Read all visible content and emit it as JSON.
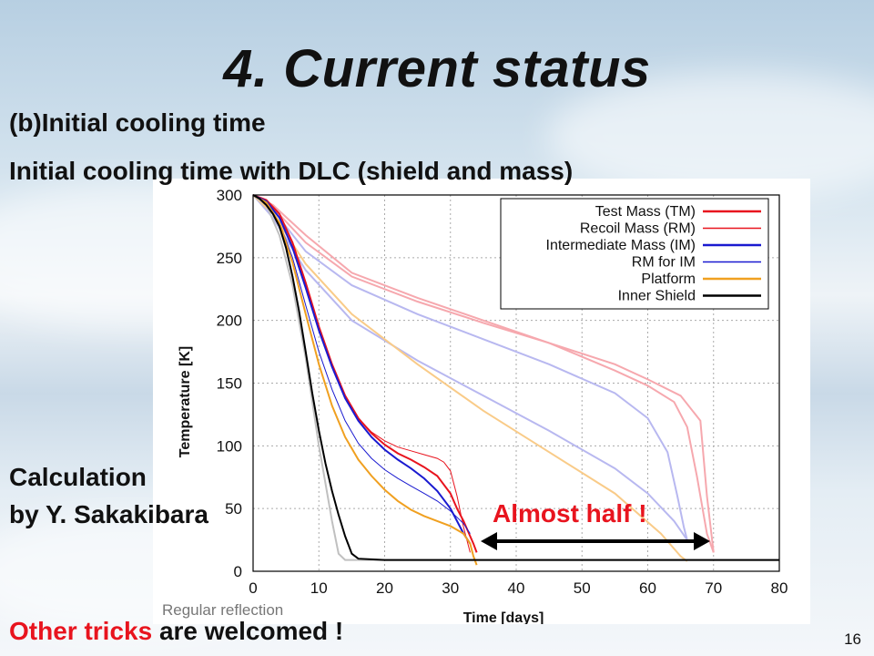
{
  "slide": {
    "title": "4. Current status",
    "subtitle": "(b)Initial cooling time",
    "chart_caption": "Initial cooling time with DLC (shield and mass)",
    "credit_line1": "Calculation",
    "credit_line2": "by Y. Sakakibara",
    "callout": "Almost half !",
    "footer_highlight": "Other tricks",
    "footer_rest": " are welcomed !",
    "page_number": "16",
    "watermark": "Regular reflection"
  },
  "colors": {
    "accent_red": "#e8141e",
    "arrow": "#000000"
  },
  "chart_data": {
    "type": "line",
    "xlabel": "Time [days]",
    "ylabel": "Temperature [K]",
    "xlim": [
      0,
      80
    ],
    "ylim": [
      0,
      300
    ],
    "xticks": [
      0,
      10,
      20,
      30,
      40,
      50,
      60,
      70,
      80
    ],
    "yticks": [
      0,
      50,
      100,
      150,
      200,
      250,
      300
    ],
    "grid": true,
    "legend_position": "top-right",
    "series": [
      {
        "name": "Test Mass (TM)",
        "color": "#e8141e",
        "width": 2,
        "x": [
          0,
          2,
          4,
          6,
          8,
          10,
          12,
          14,
          16,
          18,
          20,
          22,
          24,
          26,
          28,
          30,
          31,
          32,
          33,
          33.5,
          34
        ],
        "y": [
          300,
          296,
          285,
          262,
          230,
          195,
          165,
          140,
          122,
          110,
          101,
          94,
          89,
          83,
          76,
          62,
          50,
          40,
          28,
          22,
          15
        ]
      },
      {
        "name": "Recoil Mass (RM)",
        "color": "#e8141e",
        "width": 1,
        "x": [
          0,
          2,
          4,
          6,
          8,
          10,
          12,
          14,
          16,
          18,
          20,
          22,
          24,
          26,
          28,
          29,
          30,
          31,
          32,
          33
        ],
        "y": [
          300,
          296,
          285,
          262,
          230,
          195,
          165,
          140,
          122,
          111,
          104,
          99,
          96,
          93,
          90,
          87,
          80,
          60,
          35,
          15
        ]
      },
      {
        "name": "Intermediate Mass (IM)",
        "color": "#1a1ad0",
        "width": 2,
        "x": [
          0,
          2,
          4,
          6,
          8,
          10,
          12,
          14,
          16,
          18,
          20,
          22,
          24,
          26,
          28,
          30,
          31,
          32,
          33
        ],
        "y": [
          300,
          295,
          282,
          258,
          226,
          192,
          163,
          138,
          120,
          107,
          97,
          89,
          82,
          74,
          64,
          50,
          40,
          30,
          22
        ]
      },
      {
        "name": "RM for IM",
        "color": "#1a1ad0",
        "width": 1,
        "x": [
          0,
          2,
          4,
          6,
          8,
          10,
          12,
          14,
          16,
          18,
          20,
          22,
          24,
          26,
          28,
          30,
          32,
          33
        ],
        "y": [
          300,
          294,
          278,
          250,
          212,
          175,
          145,
          120,
          102,
          90,
          81,
          74,
          68,
          62,
          56,
          48,
          38,
          30
        ]
      },
      {
        "name": "Platform",
        "color": "#f0a020",
        "width": 2,
        "x": [
          0,
          2,
          4,
          6,
          8,
          10,
          12,
          14,
          16,
          18,
          20,
          22,
          24,
          26,
          28,
          30,
          32,
          33,
          33.5,
          34
        ],
        "y": [
          300,
          294,
          278,
          246,
          205,
          165,
          132,
          107,
          89,
          76,
          65,
          56,
          49,
          44,
          40,
          36,
          30,
          22,
          12,
          5
        ]
      },
      {
        "name": "Inner Shield",
        "color": "#000000",
        "width": 2,
        "x": [
          0,
          1,
          2,
          3,
          4,
          5,
          6,
          7,
          8,
          9,
          10,
          11,
          12,
          13,
          14,
          15,
          16,
          20,
          40,
          80
        ],
        "y": [
          300,
          297,
          292,
          285,
          275,
          258,
          235,
          207,
          175,
          142,
          112,
          86,
          64,
          45,
          28,
          14,
          10,
          9,
          9,
          9
        ]
      }
    ],
    "faded_series": [
      {
        "color": "#f6a8ae",
        "x": [
          0,
          3,
          8,
          15,
          25,
          35,
          45,
          55,
          60,
          64,
          66,
          67.5,
          69,
          70
        ],
        "y": [
          300,
          292,
          268,
          238,
          218,
          200,
          182,
          160,
          148,
          135,
          115,
          75,
          30,
          15
        ]
      },
      {
        "color": "#f6a8ae",
        "x": [
          0,
          3,
          8,
          15,
          25,
          35,
          45,
          55,
          60,
          65,
          68,
          69,
          70
        ],
        "y": [
          300,
          290,
          262,
          235,
          215,
          198,
          182,
          165,
          153,
          140,
          120,
          60,
          15
        ]
      },
      {
        "color": "#b8b8f0",
        "x": [
          0,
          3,
          8,
          15,
          25,
          35,
          45,
          55,
          60,
          63,
          64.5,
          65.5,
          66
        ],
        "y": [
          300,
          288,
          255,
          228,
          205,
          185,
          165,
          142,
          122,
          95,
          60,
          35,
          25
        ]
      },
      {
        "color": "#b8b8f0",
        "x": [
          0,
          3,
          8,
          15,
          25,
          35,
          45,
          55,
          60,
          64,
          66
        ],
        "y": [
          300,
          282,
          240,
          200,
          168,
          140,
          112,
          82,
          62,
          40,
          25
        ]
      },
      {
        "color": "#f9cb88",
        "x": [
          0,
          3,
          8,
          15,
          25,
          35,
          45,
          55,
          62,
          65,
          66
        ],
        "y": [
          300,
          285,
          245,
          205,
          165,
          128,
          95,
          62,
          30,
          12,
          8
        ]
      },
      {
        "color": "#c0c0c0",
        "x": [
          0,
          2,
          4,
          6,
          8,
          10,
          12,
          13,
          14,
          80
        ],
        "y": [
          300,
          292,
          268,
          228,
          170,
          100,
          40,
          14,
          9,
          9
        ]
      }
    ]
  }
}
